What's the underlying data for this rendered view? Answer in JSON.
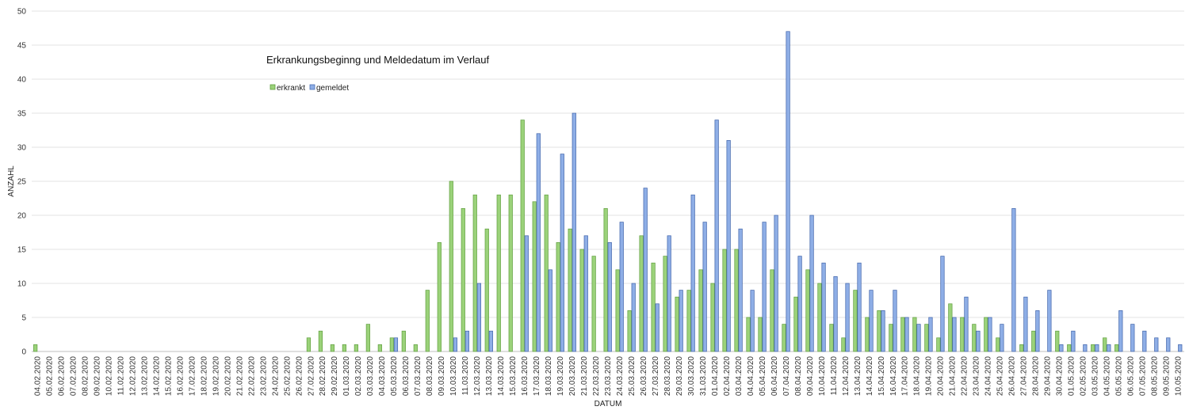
{
  "chart_data": {
    "type": "bar",
    "title": "Erkrankungsbeginng  und Meldedatum im Verlauf",
    "xlabel": "DATUM",
    "ylabel": "ANZAHL",
    "ylim": [
      0,
      50
    ],
    "y_ticks": [
      0,
      5,
      10,
      15,
      20,
      25,
      30,
      35,
      40,
      45,
      50
    ],
    "grid": true,
    "legend": "top-left",
    "categories": [
      "04.02.2020",
      "05.02.2020",
      "06.02.2020",
      "07.02.2020",
      "08.02.2020",
      "09.02.2020",
      "10.02.2020",
      "11.02.2020",
      "12.02.2020",
      "13.02.2020",
      "14.02.2020",
      "15.02.2020",
      "16.02.2020",
      "17.02.2020",
      "18.02.2020",
      "19.02.2020",
      "20.02.2020",
      "21.02.2020",
      "22.02.2020",
      "23.02.2020",
      "24.02.2020",
      "25.02.2020",
      "26.02.2020",
      "27.02.2020",
      "28.02.2020",
      "29.02.2020",
      "01.03.2020",
      "02.03.2020",
      "03.03.2020",
      "04.03.2020",
      "05.03.2020",
      "06.03.2020",
      "07.03.2020",
      "08.03.2020",
      "09.03.2020",
      "10.03.2020",
      "11.03.2020",
      "12.03.2020",
      "13.03.2020",
      "14.03.2020",
      "15.03.2020",
      "16.03.2020",
      "17.03.2020",
      "18.03.2020",
      "19.03.2020",
      "20.03.2020",
      "21.03.2020",
      "22.03.2020",
      "23.03.2020",
      "24.03.2020",
      "25.03.2020",
      "26.03.2020",
      "27.03.2020",
      "28.03.2020",
      "29.03.2020",
      "30.03.2020",
      "31.03.2020",
      "01.04.2020",
      "02.04.2020",
      "03.04.2020",
      "04.04.2020",
      "05.04.2020",
      "06.04.2020",
      "07.04.2020",
      "08.04.2020",
      "09.04.2020",
      "10.04.2020",
      "11.04.2020",
      "12.04.2020",
      "13.04.2020",
      "14.04.2020",
      "15.04.2020",
      "16.04.2020",
      "17.04.2020",
      "18.04.2020",
      "19.04.2020",
      "20.04.2020",
      "21.04.2020",
      "22.04.2020",
      "23.04.2020",
      "24.04.2020",
      "25.04.2020",
      "26.04.2020",
      "27.04.2020",
      "28.04.2020",
      "29.04.2020",
      "30.04.2020",
      "01.05.2020",
      "02.05.2020",
      "03.05.2020",
      "04.05.2020",
      "05.05.2020",
      "06.05.2020",
      "07.05.2020",
      "08.05.2020",
      "09.05.2020",
      "10.05.2020"
    ],
    "series": [
      {
        "name": "erkrankt",
        "color": "#9bd27a",
        "values": [
          1,
          0,
          0,
          0,
          0,
          0,
          0,
          0,
          0,
          0,
          0,
          0,
          0,
          0,
          0,
          0,
          0,
          0,
          0,
          0,
          0,
          0,
          0,
          2,
          3,
          1,
          1,
          1,
          4,
          1,
          2,
          3,
          1,
          9,
          16,
          25,
          21,
          23,
          18,
          23,
          23,
          34,
          22,
          23,
          16,
          18,
          15,
          14,
          21,
          12,
          6,
          17,
          13,
          14,
          8,
          9,
          12,
          10,
          15,
          15,
          5,
          5,
          12,
          4,
          8,
          12,
          10,
          4,
          2,
          9,
          5,
          6,
          4,
          5,
          5,
          4,
          2,
          7,
          5,
          4,
          5,
          2,
          0,
          1,
          3,
          0,
          3,
          1,
          0,
          1,
          2,
          1,
          0,
          0,
          0,
          0,
          0
        ]
      },
      {
        "name": "gemeldet",
        "color": "#8eaee6",
        "values": [
          0,
          0,
          0,
          0,
          0,
          0,
          0,
          0,
          0,
          0,
          0,
          0,
          0,
          0,
          0,
          0,
          0,
          0,
          0,
          0,
          0,
          0,
          0,
          0,
          0,
          0,
          0,
          0,
          0,
          0,
          2,
          0,
          0,
          0,
          0,
          2,
          3,
          10,
          3,
          0,
          0,
          17,
          32,
          12,
          29,
          35,
          17,
          0,
          16,
          19,
          10,
          24,
          7,
          17,
          9,
          23,
          19,
          34,
          31,
          18,
          9,
          19,
          20,
          47,
          14,
          20,
          13,
          11,
          10,
          13,
          9,
          6,
          9,
          5,
          4,
          5,
          14,
          5,
          8,
          3,
          5,
          4,
          21,
          8,
          6,
          9,
          1,
          3,
          1,
          1,
          1,
          6,
          4,
          3,
          2,
          2,
          1
        ]
      }
    ]
  }
}
